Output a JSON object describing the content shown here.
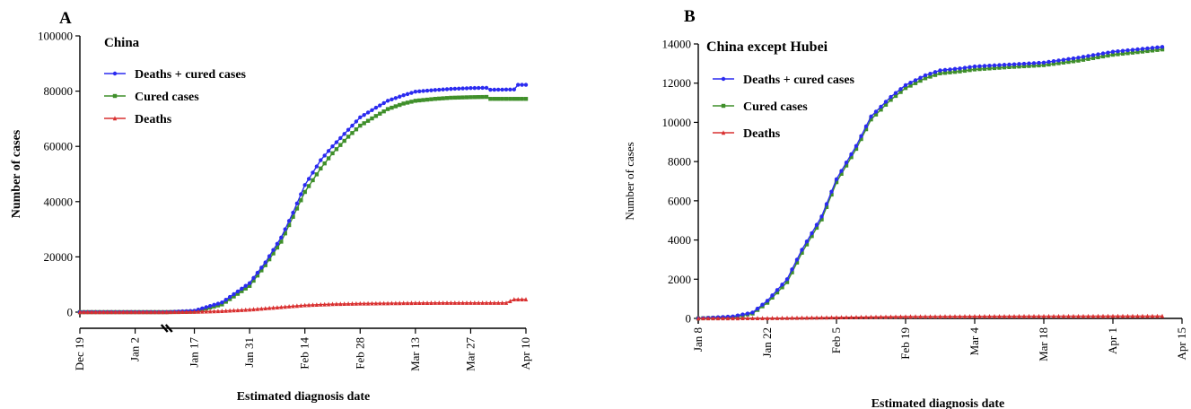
{
  "chart_data": [
    {
      "type": "line",
      "panel_label": "A",
      "title": "China",
      "xlabel": "Estimated diagnosis date",
      "ylabel": "Number of cases",
      "x_unit": "date",
      "xlim": [
        "2019-12-19",
        "2020-04-10"
      ],
      "ylim": [
        0,
        100000
      ],
      "y_ticks": [
        0,
        20000,
        40000,
        60000,
        80000,
        100000
      ],
      "y_tick_labels": [
        "0",
        "20000",
        "40000",
        "60000",
        "80000",
        "100000"
      ],
      "x_ticks": [
        "2019-12-19",
        "2020-01-02",
        "2020-01-17",
        "2020-01-31",
        "2020-02-14",
        "2020-02-28",
        "2020-03-13",
        "2020-03-27",
        "2020-04-10"
      ],
      "x_tick_labels": [
        "Dec 19",
        "Jan 2",
        "Jan 17",
        "Jan 31",
        "Feb 14",
        "Feb 28",
        "Mar 13",
        "Mar 27",
        "Apr 10"
      ],
      "axis_break": true,
      "grid": false,
      "legend_position": "top-left",
      "series": [
        {
          "name": "Deaths + cured cases",
          "color": "#2b2bf0",
          "marker": "circle",
          "x": [
            "2019-12-19",
            "2020-01-10",
            "2020-01-17",
            "2020-01-24",
            "2020-01-31",
            "2020-02-04",
            "2020-02-08",
            "2020-02-11",
            "2020-02-14",
            "2020-02-18",
            "2020-02-21",
            "2020-02-25",
            "2020-02-28",
            "2020-03-03",
            "2020-03-06",
            "2020-03-10",
            "2020-03-13",
            "2020-03-18",
            "2020-03-22",
            "2020-03-27",
            "2020-03-31",
            "2020-04-01",
            "2020-04-07",
            "2020-04-08",
            "2020-04-10"
          ],
          "values": [
            0,
            0,
            500,
            3500,
            10500,
            18000,
            27000,
            36000,
            46000,
            55000,
            60000,
            66000,
            70500,
            74000,
            76500,
            78500,
            79800,
            80400,
            80800,
            81100,
            81200,
            80500,
            80600,
            82300,
            82300
          ]
        },
        {
          "name": "Cured cases",
          "color": "#3f8f2a",
          "marker": "square",
          "x": [
            "2019-12-19",
            "2020-01-10",
            "2020-01-17",
            "2020-01-24",
            "2020-01-31",
            "2020-02-04",
            "2020-02-08",
            "2020-02-11",
            "2020-02-14",
            "2020-02-18",
            "2020-02-21",
            "2020-02-25",
            "2020-02-28",
            "2020-03-03",
            "2020-03-06",
            "2020-03-10",
            "2020-03-13",
            "2020-03-18",
            "2020-03-22",
            "2020-03-27",
            "2020-03-31",
            "2020-04-01",
            "2020-04-10"
          ],
          "values": [
            0,
            0,
            200,
            2800,
            9500,
            17000,
            25500,
            34500,
            43500,
            52000,
            57500,
            63500,
            67500,
            71000,
            73500,
            75500,
            76500,
            77200,
            77600,
            77800,
            77900,
            77200,
            77200
          ]
        },
        {
          "name": "Deaths",
          "color": "#d93030",
          "marker": "triangle",
          "x": [
            "2019-12-19",
            "2020-01-10",
            "2020-01-17",
            "2020-01-24",
            "2020-01-31",
            "2020-02-07",
            "2020-02-14",
            "2020-02-21",
            "2020-02-28",
            "2020-03-06",
            "2020-03-13",
            "2020-03-20",
            "2020-03-27",
            "2020-04-05",
            "2020-04-07",
            "2020-04-10"
          ],
          "values": [
            0,
            0,
            100,
            400,
            900,
            1700,
            2500,
            2900,
            3100,
            3200,
            3300,
            3350,
            3350,
            3350,
            4600,
            4600
          ]
        }
      ]
    },
    {
      "type": "line",
      "panel_label": "B",
      "title": "China except Hubei",
      "xlabel": "Estimated diagnosis date",
      "ylabel": "Number of cases",
      "x_unit": "date",
      "xlim": [
        "2020-01-08",
        "2020-04-15"
      ],
      "ylim": [
        0,
        14000
      ],
      "y_ticks": [
        0,
        2000,
        4000,
        6000,
        8000,
        10000,
        12000,
        14000
      ],
      "y_tick_labels": [
        "0",
        "2000",
        "4000",
        "6000",
        "8000",
        "10000",
        "12000",
        "14000"
      ],
      "x_ticks": [
        "2020-01-08",
        "2020-01-22",
        "2020-02-05",
        "2020-02-19",
        "2020-03-04",
        "2020-03-18",
        "2020-04-01",
        "2020-04-15"
      ],
      "x_tick_labels": [
        "Jan 8",
        "Jan 22",
        "Feb 5",
        "Feb 19",
        "Mar 4",
        "Mar 18",
        "Apr 1",
        "Apr 15"
      ],
      "grid": false,
      "legend_position": "top-left",
      "series": [
        {
          "name": "Deaths + cured cases",
          "color": "#2b2bf0",
          "marker": "circle",
          "x": [
            "2020-01-08",
            "2020-01-15",
            "2020-01-19",
            "2020-01-22",
            "2020-01-26",
            "2020-01-29",
            "2020-02-02",
            "2020-02-05",
            "2020-02-09",
            "2020-02-12",
            "2020-02-16",
            "2020-02-19",
            "2020-02-23",
            "2020-02-26",
            "2020-03-01",
            "2020-03-04",
            "2020-03-11",
            "2020-03-18",
            "2020-03-25",
            "2020-04-01",
            "2020-04-11"
          ],
          "values": [
            0,
            100,
            300,
            900,
            2000,
            3500,
            5200,
            7100,
            8800,
            10300,
            11300,
            11900,
            12400,
            12650,
            12750,
            12850,
            12950,
            13050,
            13300,
            13600,
            13850
          ]
        },
        {
          "name": "Cured cases",
          "color": "#3f8f2a",
          "marker": "square",
          "x": [
            "2020-01-08",
            "2020-01-15",
            "2020-01-19",
            "2020-01-22",
            "2020-01-26",
            "2020-01-29",
            "2020-02-02",
            "2020-02-05",
            "2020-02-09",
            "2020-02-12",
            "2020-02-16",
            "2020-02-19",
            "2020-02-23",
            "2020-02-26",
            "2020-03-01",
            "2020-03-04",
            "2020-03-11",
            "2020-03-18",
            "2020-03-25",
            "2020-04-01",
            "2020-04-11"
          ],
          "values": [
            0,
            60,
            250,
            800,
            1850,
            3350,
            5050,
            6950,
            8650,
            10150,
            11150,
            11750,
            12250,
            12500,
            12600,
            12700,
            12820,
            12920,
            13150,
            13450,
            13720
          ]
        },
        {
          "name": "Deaths",
          "color": "#d93030",
          "marker": "triangle",
          "x": [
            "2020-01-08",
            "2020-01-22",
            "2020-02-05",
            "2020-02-19",
            "2020-03-04",
            "2020-03-18",
            "2020-04-01",
            "2020-04-11"
          ],
          "values": [
            0,
            10,
            50,
            90,
            105,
            110,
            115,
            115
          ]
        }
      ]
    }
  ]
}
